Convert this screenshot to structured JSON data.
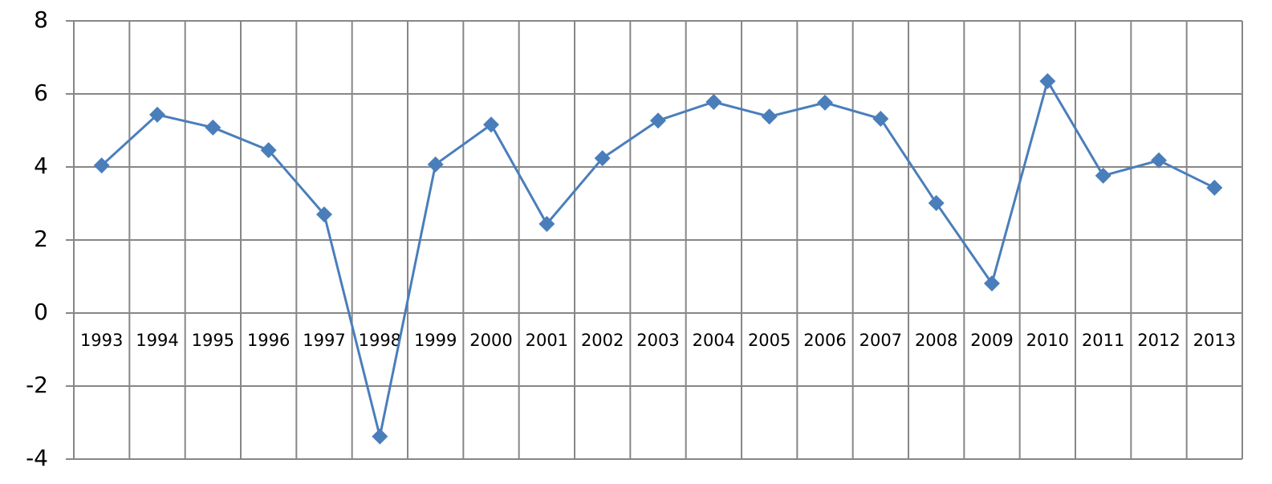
{
  "chart_data": {
    "type": "line",
    "categories": [
      "1993",
      "1994",
      "1995",
      "1996",
      "1997",
      "1998",
      "1999",
      "2000",
      "2001",
      "2002",
      "2003",
      "2004",
      "2005",
      "2006",
      "2007",
      "2008",
      "2009",
      "2010",
      "2011",
      "2012",
      "2013"
    ],
    "values": [
      4.04,
      5.43,
      5.08,
      4.46,
      2.7,
      -3.38,
      4.07,
      5.16,
      2.44,
      4.24,
      5.27,
      5.78,
      5.38,
      5.76,
      5.32,
      3.01,
      0.81,
      6.35,
      3.76,
      4.18,
      3.43
    ],
    "color": "#4a7ebb",
    "ylim": [
      -4,
      8
    ],
    "yticks": [
      -4,
      -2,
      0,
      2,
      4,
      6,
      8
    ],
    "grid": true
  }
}
